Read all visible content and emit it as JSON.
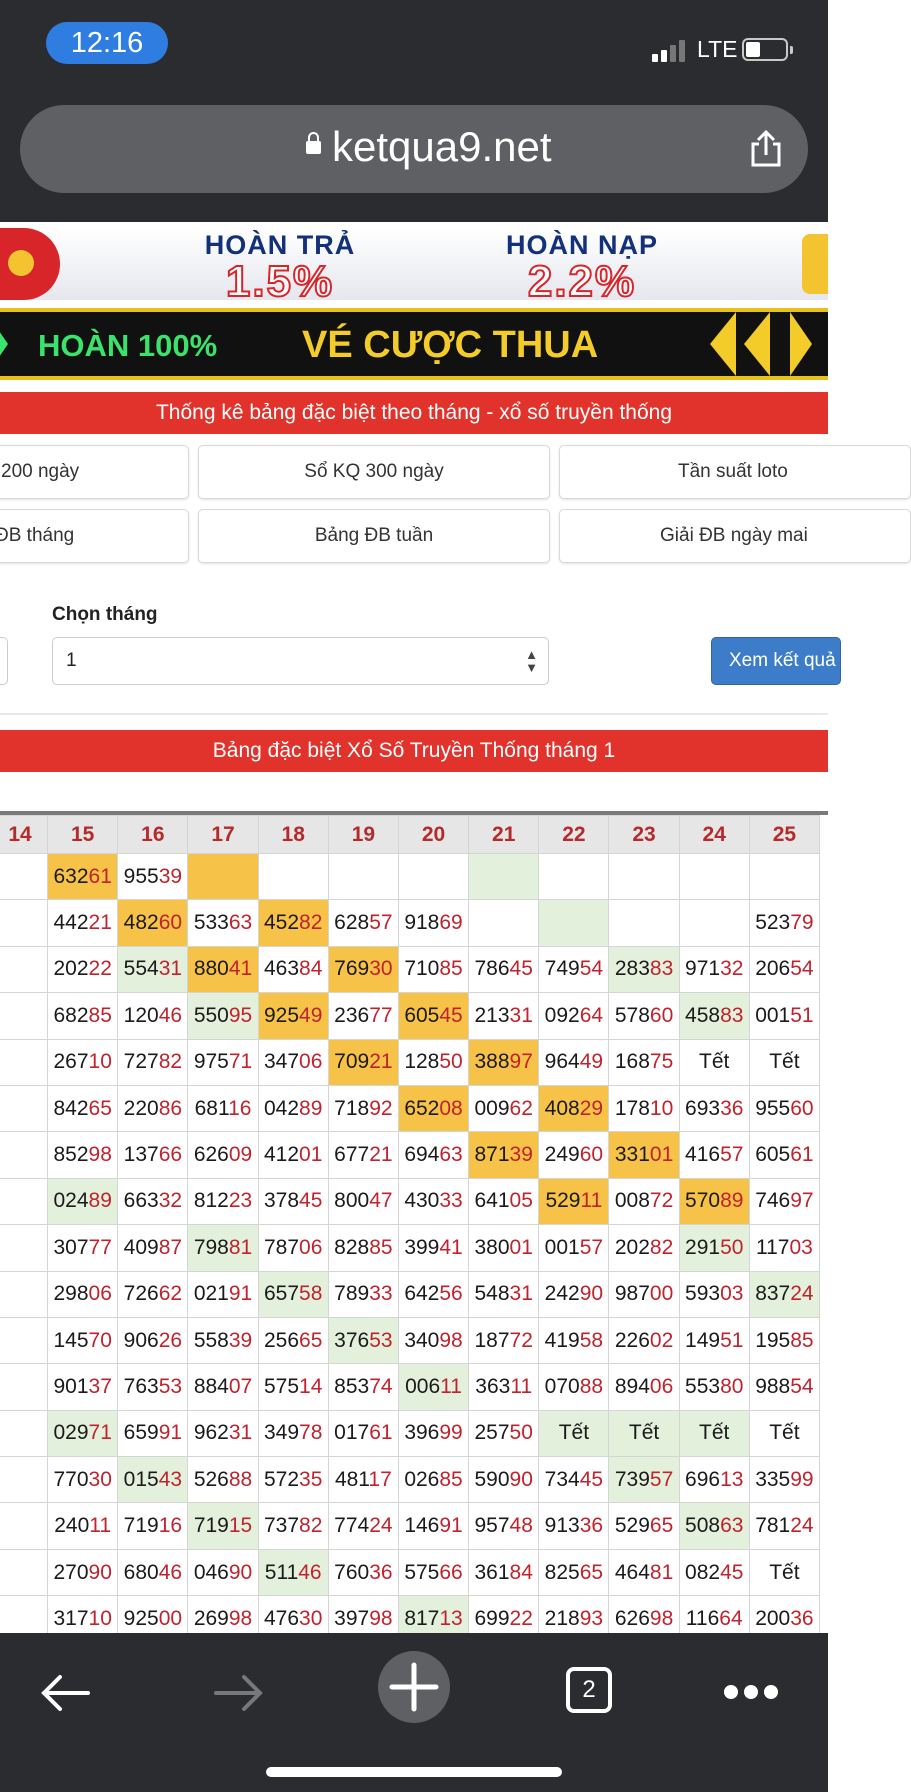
{
  "status_bar": {
    "time": "12:16",
    "network": "LTE"
  },
  "browser": {
    "url": "ketqua9.net",
    "open_tabs": "2"
  },
  "banner1": {
    "item1_title": "HOÀN TRẢ",
    "item1_value": "1.5%",
    "item2_title": "HOÀN NẠP",
    "item2_value": "2.2%"
  },
  "banner2": {
    "text1": "HOÀN 100%",
    "text2": "VÉ CƯỢC THUA"
  },
  "section_title": "Thống kê bảng đặc biệt theo tháng - xổ số truyền thống",
  "nav_buttons": [
    "200 ngày",
    "Sổ KQ 300 ngày",
    "Tần suất loto",
    "ĐB tháng",
    "Bảng ĐB tuần",
    "Giải ĐB ngày mai"
  ],
  "form": {
    "label": "Chọn tháng",
    "selected": "1",
    "submit_label": "Xem kết quả"
  },
  "table_title": "Bảng đặc biệt Xổ Số Truyền Thống tháng 1",
  "colors": {
    "red": "#e1322b",
    "yellow_cell": "#f7c248",
    "green_cell": "#e3f1dc",
    "digit_red": "#c0232d"
  },
  "table": {
    "headers": [
      "14",
      "15",
      "16",
      "17",
      "18",
      "19",
      "20",
      "21",
      "22",
      "23",
      "24",
      "25"
    ],
    "rows": [
      [
        {
          "v": "",
          "h": ""
        },
        {
          "v": "63261",
          "h": "y"
        },
        {
          "v": "95539",
          "h": ""
        },
        {
          "v": "",
          "h": "y"
        },
        {
          "v": "",
          "h": ""
        },
        {
          "v": "",
          "h": ""
        },
        {
          "v": "",
          "h": ""
        },
        {
          "v": "",
          "h": "g"
        },
        {
          "v": "",
          "h": ""
        },
        {
          "v": "",
          "h": ""
        },
        {
          "v": "",
          "h": ""
        },
        {
          "v": "",
          "h": ""
        }
      ],
      [
        {
          "v": "",
          "h": ""
        },
        {
          "v": "44221",
          "h": ""
        },
        {
          "v": "48260",
          "h": "y"
        },
        {
          "v": "53363",
          "h": ""
        },
        {
          "v": "45282",
          "h": "y"
        },
        {
          "v": "62857",
          "h": ""
        },
        {
          "v": "91869",
          "h": ""
        },
        {
          "v": "",
          "h": ""
        },
        {
          "v": "",
          "h": "g"
        },
        {
          "v": "",
          "h": ""
        },
        {
          "v": "",
          "h": ""
        },
        {
          "v": "52379",
          "h": ""
        }
      ],
      [
        {
          "v": "",
          "h": ""
        },
        {
          "v": "20222",
          "h": ""
        },
        {
          "v": "55431",
          "h": "g"
        },
        {
          "v": "88041",
          "h": "y"
        },
        {
          "v": "46384",
          "h": ""
        },
        {
          "v": "76930",
          "h": "y"
        },
        {
          "v": "71085",
          "h": ""
        },
        {
          "v": "78645",
          "h": ""
        },
        {
          "v": "74954",
          "h": ""
        },
        {
          "v": "28383",
          "h": "g"
        },
        {
          "v": "97132",
          "h": ""
        },
        {
          "v": "20654",
          "h": ""
        }
      ],
      [
        {
          "v": "",
          "h": ""
        },
        {
          "v": "68285",
          "h": ""
        },
        {
          "v": "12046",
          "h": ""
        },
        {
          "v": "55095",
          "h": "g"
        },
        {
          "v": "92549",
          "h": "y"
        },
        {
          "v": "23677",
          "h": ""
        },
        {
          "v": "60545",
          "h": "y"
        },
        {
          "v": "21331",
          "h": ""
        },
        {
          "v": "09264",
          "h": ""
        },
        {
          "v": "57860",
          "h": ""
        },
        {
          "v": "45883",
          "h": "g"
        },
        {
          "v": "00151",
          "h": ""
        }
      ],
      [
        {
          "v": "",
          "h": ""
        },
        {
          "v": "26710",
          "h": ""
        },
        {
          "v": "72782",
          "h": ""
        },
        {
          "v": "97571",
          "h": ""
        },
        {
          "v": "34706",
          "h": ""
        },
        {
          "v": "70921",
          "h": "y"
        },
        {
          "v": "12850",
          "h": ""
        },
        {
          "v": "38897",
          "h": "y"
        },
        {
          "v": "96449",
          "h": ""
        },
        {
          "v": "16875",
          "h": ""
        },
        {
          "v": "Tết",
          "h": ""
        },
        {
          "v": "Tết",
          "h": ""
        }
      ],
      [
        {
          "v": "",
          "h": ""
        },
        {
          "v": "84265",
          "h": ""
        },
        {
          "v": "22086",
          "h": ""
        },
        {
          "v": "68116",
          "h": ""
        },
        {
          "v": "04289",
          "h": ""
        },
        {
          "v": "71892",
          "h": ""
        },
        {
          "v": "65208",
          "h": "y"
        },
        {
          "v": "00962",
          "h": ""
        },
        {
          "v": "40829",
          "h": "y"
        },
        {
          "v": "17810",
          "h": ""
        },
        {
          "v": "69336",
          "h": ""
        },
        {
          "v": "95560",
          "h": ""
        }
      ],
      [
        {
          "v": "",
          "h": ""
        },
        {
          "v": "85298",
          "h": ""
        },
        {
          "v": "13766",
          "h": ""
        },
        {
          "v": "62609",
          "h": ""
        },
        {
          "v": "41201",
          "h": ""
        },
        {
          "v": "67721",
          "h": ""
        },
        {
          "v": "69463",
          "h": ""
        },
        {
          "v": "87139",
          "h": "y"
        },
        {
          "v": "24960",
          "h": ""
        },
        {
          "v": "33101",
          "h": "y"
        },
        {
          "v": "41657",
          "h": ""
        },
        {
          "v": "60561",
          "h": ""
        }
      ],
      [
        {
          "v": "",
          "h": ""
        },
        {
          "v": "02489",
          "h": "g"
        },
        {
          "v": "66332",
          "h": ""
        },
        {
          "v": "81223",
          "h": ""
        },
        {
          "v": "37845",
          "h": ""
        },
        {
          "v": "80047",
          "h": ""
        },
        {
          "v": "43033",
          "h": ""
        },
        {
          "v": "64105",
          "h": ""
        },
        {
          "v": "52911",
          "h": "y"
        },
        {
          "v": "00872",
          "h": ""
        },
        {
          "v": "57089",
          "h": "y"
        },
        {
          "v": "74697",
          "h": ""
        }
      ],
      [
        {
          "v": "",
          "h": ""
        },
        {
          "v": "30777",
          "h": ""
        },
        {
          "v": "40987",
          "h": ""
        },
        {
          "v": "79881",
          "h": "g"
        },
        {
          "v": "78706",
          "h": ""
        },
        {
          "v": "82885",
          "h": ""
        },
        {
          "v": "39941",
          "h": ""
        },
        {
          "v": "38001",
          "h": ""
        },
        {
          "v": "00157",
          "h": ""
        },
        {
          "v": "20282",
          "h": ""
        },
        {
          "v": "29150",
          "h": "g"
        },
        {
          "v": "11703",
          "h": ""
        }
      ],
      [
        {
          "v": "",
          "h": ""
        },
        {
          "v": "29806",
          "h": ""
        },
        {
          "v": "72662",
          "h": ""
        },
        {
          "v": "02191",
          "h": ""
        },
        {
          "v": "65758",
          "h": "g"
        },
        {
          "v": "78933",
          "h": ""
        },
        {
          "v": "64256",
          "h": ""
        },
        {
          "v": "54831",
          "h": ""
        },
        {
          "v": "24290",
          "h": ""
        },
        {
          "v": "98700",
          "h": ""
        },
        {
          "v": "59303",
          "h": ""
        },
        {
          "v": "83724",
          "h": "g"
        }
      ],
      [
        {
          "v": "",
          "h": ""
        },
        {
          "v": "14570",
          "h": ""
        },
        {
          "v": "90626",
          "h": ""
        },
        {
          "v": "55839",
          "h": ""
        },
        {
          "v": "25665",
          "h": ""
        },
        {
          "v": "37653",
          "h": "g"
        },
        {
          "v": "34098",
          "h": ""
        },
        {
          "v": "18772",
          "h": ""
        },
        {
          "v": "41958",
          "h": ""
        },
        {
          "v": "22602",
          "h": ""
        },
        {
          "v": "14951",
          "h": ""
        },
        {
          "v": "19585",
          "h": ""
        }
      ],
      [
        {
          "v": "",
          "h": ""
        },
        {
          "v": "90137",
          "h": ""
        },
        {
          "v": "76353",
          "h": ""
        },
        {
          "v": "88407",
          "h": ""
        },
        {
          "v": "57514",
          "h": ""
        },
        {
          "v": "85374",
          "h": ""
        },
        {
          "v": "00611",
          "h": "g"
        },
        {
          "v": "36311",
          "h": ""
        },
        {
          "v": "07088",
          "h": ""
        },
        {
          "v": "89406",
          "h": ""
        },
        {
          "v": "55380",
          "h": ""
        },
        {
          "v": "98854",
          "h": ""
        }
      ],
      [
        {
          "v": "",
          "h": ""
        },
        {
          "v": "02971",
          "h": "g"
        },
        {
          "v": "65991",
          "h": ""
        },
        {
          "v": "96231",
          "h": ""
        },
        {
          "v": "34978",
          "h": ""
        },
        {
          "v": "01761",
          "h": ""
        },
        {
          "v": "39699",
          "h": ""
        },
        {
          "v": "25750",
          "h": ""
        },
        {
          "v": "Tết",
          "h": "g"
        },
        {
          "v": "Tết",
          "h": "g"
        },
        {
          "v": "Tết",
          "h": "g"
        },
        {
          "v": "Tết",
          "h": ""
        }
      ],
      [
        {
          "v": "",
          "h": ""
        },
        {
          "v": "77030",
          "h": ""
        },
        {
          "v": "01543",
          "h": "g"
        },
        {
          "v": "52688",
          "h": ""
        },
        {
          "v": "57235",
          "h": ""
        },
        {
          "v": "48117",
          "h": ""
        },
        {
          "v": "02685",
          "h": ""
        },
        {
          "v": "59090",
          "h": ""
        },
        {
          "v": "73445",
          "h": ""
        },
        {
          "v": "73957",
          "h": "g"
        },
        {
          "v": "69613",
          "h": ""
        },
        {
          "v": "33599",
          "h": ""
        }
      ],
      [
        {
          "v": "",
          "h": ""
        },
        {
          "v": "24011",
          "h": ""
        },
        {
          "v": "71916",
          "h": ""
        },
        {
          "v": "71915",
          "h": "g"
        },
        {
          "v": "73782",
          "h": ""
        },
        {
          "v": "77424",
          "h": ""
        },
        {
          "v": "14691",
          "h": ""
        },
        {
          "v": "95748",
          "h": ""
        },
        {
          "v": "91336",
          "h": ""
        },
        {
          "v": "52965",
          "h": ""
        },
        {
          "v": "50863",
          "h": "g"
        },
        {
          "v": "78124",
          "h": ""
        }
      ],
      [
        {
          "v": "",
          "h": ""
        },
        {
          "v": "27090",
          "h": ""
        },
        {
          "v": "68046",
          "h": ""
        },
        {
          "v": "04690",
          "h": ""
        },
        {
          "v": "51146",
          "h": "g"
        },
        {
          "v": "76036",
          "h": ""
        },
        {
          "v": "57566",
          "h": ""
        },
        {
          "v": "36184",
          "h": ""
        },
        {
          "v": "82565",
          "h": ""
        },
        {
          "v": "46481",
          "h": ""
        },
        {
          "v": "08245",
          "h": ""
        },
        {
          "v": "Tết",
          "h": ""
        }
      ],
      [
        {
          "v": "",
          "h": ""
        },
        {
          "v": "31710",
          "h": ""
        },
        {
          "v": "92500",
          "h": ""
        },
        {
          "v": "26998",
          "h": ""
        },
        {
          "v": "47630",
          "h": ""
        },
        {
          "v": "39798",
          "h": ""
        },
        {
          "v": "81713",
          "h": "g"
        },
        {
          "v": "69922",
          "h": ""
        },
        {
          "v": "21893",
          "h": ""
        },
        {
          "v": "62698",
          "h": ""
        },
        {
          "v": "11664",
          "h": ""
        },
        {
          "v": "20036",
          "h": ""
        }
      ]
    ]
  }
}
